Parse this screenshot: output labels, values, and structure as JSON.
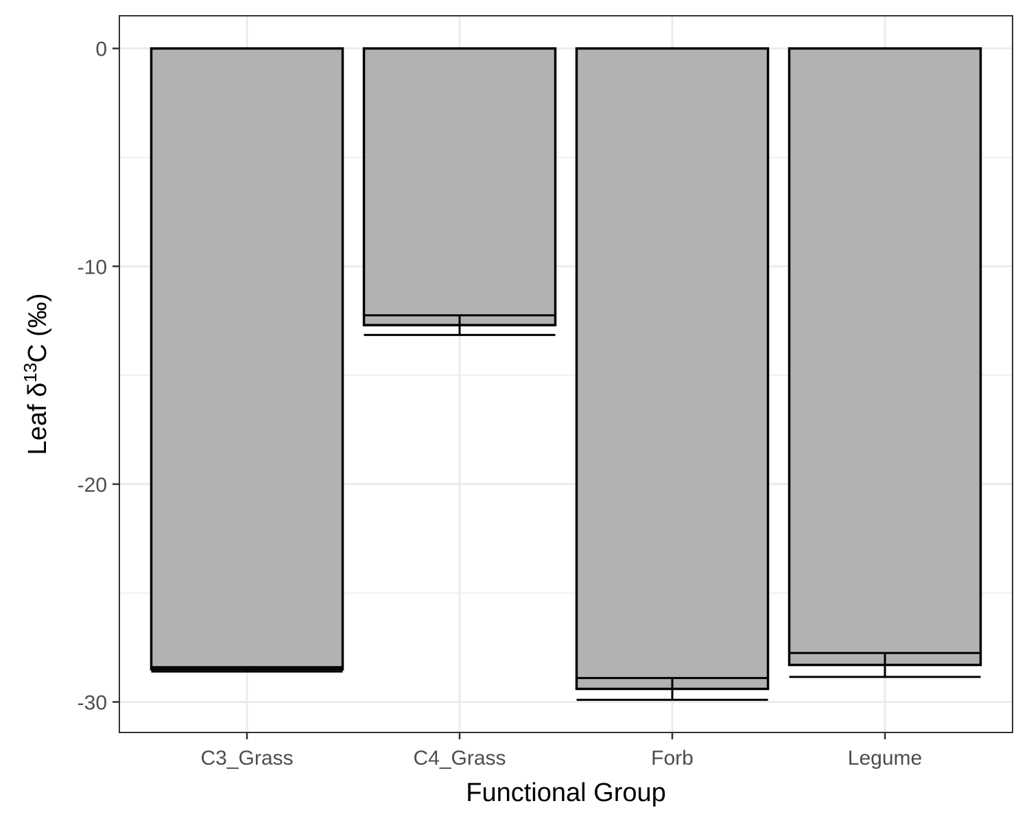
{
  "chart_data": {
    "type": "bar",
    "title": "",
    "xlabel": "Functional Group",
    "ylabel": {
      "prefix": "Leaf δ",
      "superscript": "13",
      "suffix": "C (‰)"
    },
    "categories": [
      "C3_Grass",
      "C4_Grass",
      "Forb",
      "Legume"
    ],
    "values": [
      -28.5,
      -12.7,
      -29.4,
      -28.3
    ],
    "error": [
      0.1,
      0.45,
      0.5,
      0.55
    ],
    "ylim": [
      -31.4,
      1.5
    ],
    "yticks": [
      0,
      -10,
      -20,
      -30
    ],
    "ytick_labels": [
      "0",
      "-10",
      "-20",
      "-30"
    ],
    "grid": true,
    "bar_fill": "#b2b2b2",
    "bar_stroke": "#000000",
    "grid_color": "#ebebeb",
    "panel_border": "#333333"
  }
}
